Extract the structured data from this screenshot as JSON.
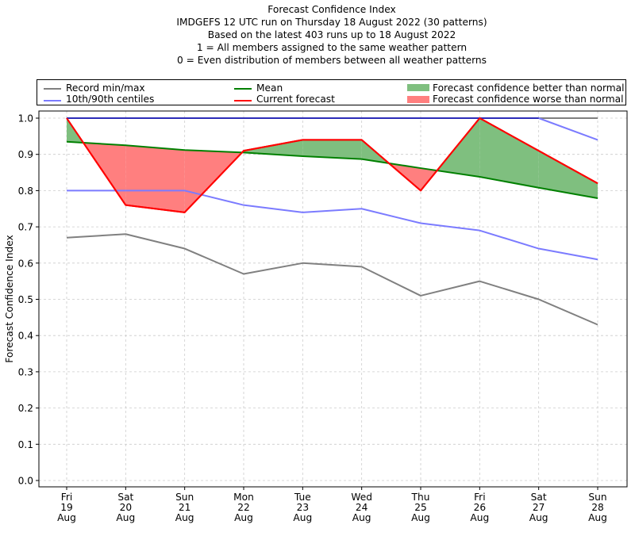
{
  "chart_data": {
    "type": "line",
    "title_lines": [
      "Forecast Confidence Index",
      "IMDGEFS 12 UTC run on Thursday 18 August 2022 (30 patterns)",
      "Based on the latest 403 runs up to 18 August 2022",
      "1 = All members assigned to the same weather pattern",
      "0 = Even distribution of members between all weather patterns"
    ],
    "xlabel": "",
    "ylabel": "Forecast Confidence Index",
    "ylim": [
      0.0,
      1.0
    ],
    "yticks": [
      "0.0",
      "0.1",
      "0.2",
      "0.3",
      "0.4",
      "0.5",
      "0.6",
      "0.7",
      "0.8",
      "0.9",
      "1.0"
    ],
    "grid": true,
    "legend_placement": "top",
    "categories": [
      {
        "day": "Fri",
        "date": "19",
        "month": "Aug"
      },
      {
        "day": "Sat",
        "date": "20",
        "month": "Aug"
      },
      {
        "day": "Sun",
        "date": "21",
        "month": "Aug"
      },
      {
        "day": "Mon",
        "date": "22",
        "month": "Aug"
      },
      {
        "day": "Tue",
        "date": "23",
        "month": "Aug"
      },
      {
        "day": "Wed",
        "date": "24",
        "month": "Aug"
      },
      {
        "day": "Thu",
        "date": "25",
        "month": "Aug"
      },
      {
        "day": "Fri",
        "date": "26",
        "month": "Aug"
      },
      {
        "day": "Sat",
        "date": "27",
        "month": "Aug"
      },
      {
        "day": "Sun",
        "date": "28",
        "month": "Aug"
      }
    ],
    "series": [
      {
        "name": "Record min",
        "legend": "Record min/max",
        "color": "#808080",
        "values": [
          0.67,
          0.68,
          0.64,
          0.57,
          0.6,
          0.59,
          0.51,
          0.55,
          0.5,
          0.43
        ]
      },
      {
        "name": "Record max",
        "legend": "Record min/max",
        "color": "#808080",
        "values": [
          1.0,
          1.0,
          1.0,
          1.0,
          1.0,
          1.0,
          1.0,
          1.0,
          1.0,
          1.0
        ]
      },
      {
        "name": "10th centile",
        "legend": "10th/90th centiles",
        "color": "#7b7bff",
        "values": [
          0.8,
          0.8,
          0.8,
          0.76,
          0.74,
          0.75,
          0.71,
          0.69,
          0.64,
          0.61
        ]
      },
      {
        "name": "90th centile",
        "legend": "10th/90th centiles",
        "color": "#7b7bff",
        "values": [
          1.0,
          1.0,
          1.0,
          1.0,
          1.0,
          1.0,
          1.0,
          1.0,
          1.0,
          0.94
        ]
      },
      {
        "name": "Mean",
        "legend": "Mean",
        "color": "#008000",
        "values": [
          0.935,
          0.925,
          0.912,
          0.905,
          0.895,
          0.887,
          0.862,
          0.838,
          0.808,
          0.779
        ]
      },
      {
        "name": "Current forecast",
        "legend": "Current forecast",
        "color": "#ff0000",
        "values": [
          1.0,
          0.76,
          0.74,
          0.91,
          0.94,
          0.94,
          0.8,
          1.0,
          0.91,
          0.82
        ]
      }
    ],
    "fills": [
      {
        "name": "Forecast confidence better than normal",
        "color": "#7fbf7f"
      },
      {
        "name": "Forecast confidence worse than normal",
        "color": "#ff7f7f"
      }
    ],
    "legend": {
      "record": "Record min/max",
      "centiles": "10th/90th centiles",
      "mean": "Mean",
      "current": "Current forecast",
      "better": "Forecast confidence better than normal",
      "worse": "Forecast confidence worse than normal"
    }
  }
}
